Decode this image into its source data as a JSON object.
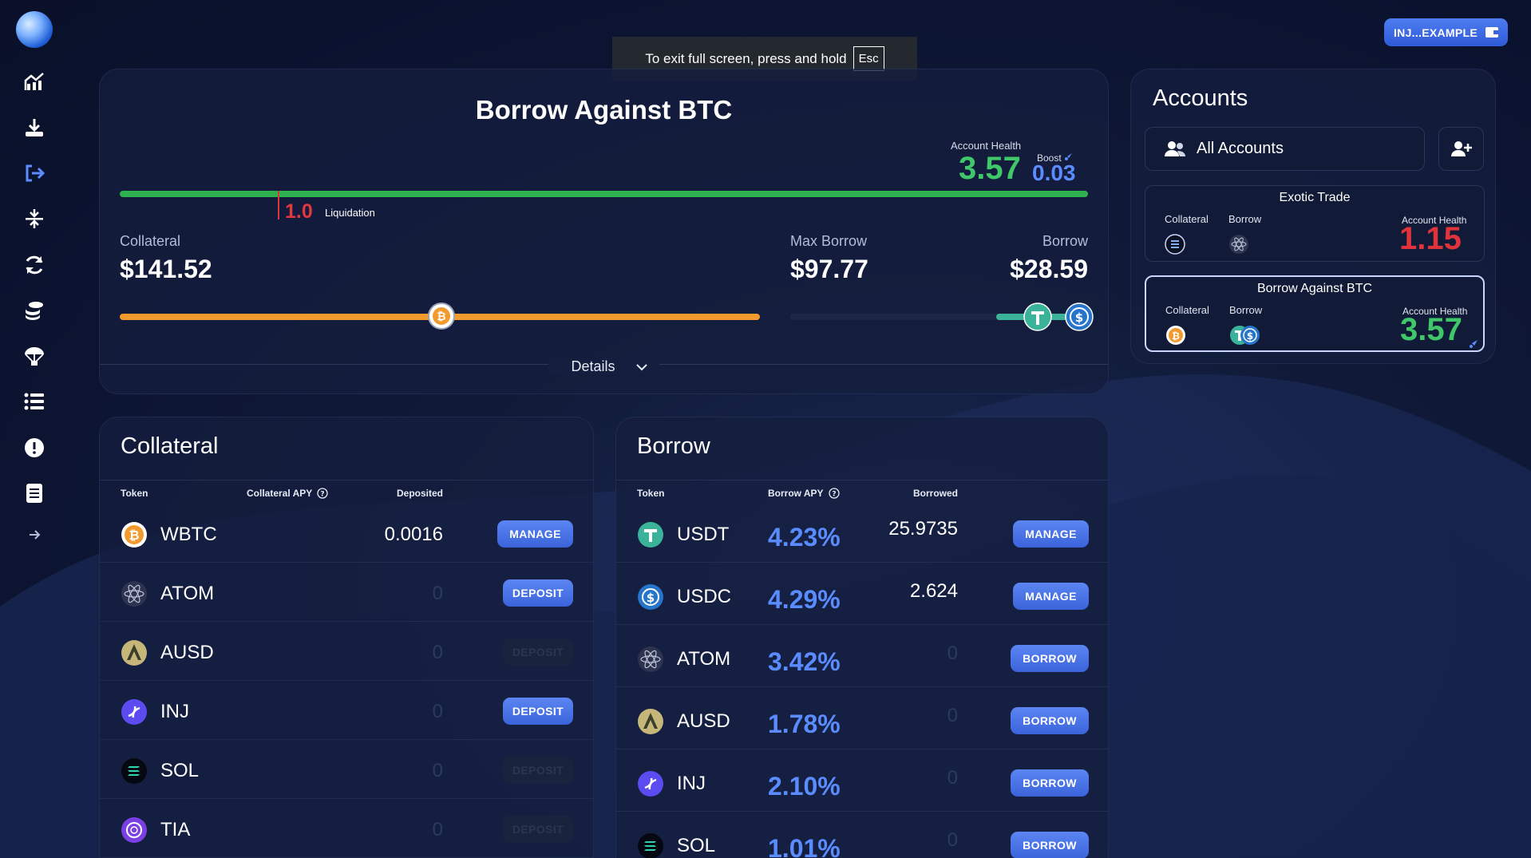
{
  "wallet": {
    "label": "INJ...EXAMPLE"
  },
  "fullscreen_toast": {
    "text": "To exit full screen, press and hold",
    "key": "Esc"
  },
  "sidebar": {
    "items": [
      "home-chart-icon",
      "download-icon",
      "logout-arrow-icon",
      "compress-icon",
      "refresh-icon",
      "coins-stack-icon",
      "parachute-icon",
      "list-icon",
      "alert-icon",
      "document-icon",
      "arrow-right-icon"
    ]
  },
  "main": {
    "title": "Borrow Against BTC",
    "account_health_label": "Account Health",
    "account_health_value": "3.57",
    "boost_label": "Boost",
    "boost_value": "0.03",
    "liquidation_value": "1.0",
    "liquidation_label": "Liquidation",
    "collateral_label": "Collateral",
    "collateral_value": "$141.52",
    "max_borrow_label": "Max Borrow",
    "max_borrow_value": "$97.77",
    "borrow_label": "Borrow",
    "borrow_value": "$28.59",
    "details_label": "Details"
  },
  "accounts": {
    "title": "Accounts",
    "all_accounts_label": "All Accounts",
    "cards": [
      {
        "name": "Exotic Trade",
        "collateral_label": "Collateral",
        "borrow_label": "Borrow",
        "health_label": "Account Health",
        "health_value": "1.15",
        "health_color": "#e0343c"
      },
      {
        "name": "Borrow Against BTC",
        "collateral_label": "Collateral",
        "borrow_label": "Borrow",
        "health_label": "Account Health",
        "health_value": "3.57",
        "health_color": "#3fc76a"
      }
    ]
  },
  "collateral": {
    "title": "Collateral",
    "headers": {
      "token": "Token",
      "apy": "Collateral APY",
      "deposited": "Deposited"
    },
    "rows": [
      {
        "token": "WBTC",
        "deposited": "0.0016",
        "action": "MANAGE"
      },
      {
        "token": "ATOM",
        "deposited": "0",
        "action": "DEPOSIT"
      },
      {
        "token": "AUSD",
        "deposited": "0",
        "action": "DEPOSIT"
      },
      {
        "token": "INJ",
        "deposited": "0",
        "action": "DEPOSIT"
      },
      {
        "token": "SOL",
        "deposited": "0",
        "action": "DEPOSIT"
      },
      {
        "token": "TIA",
        "deposited": "0",
        "action": "DEPOSIT"
      }
    ]
  },
  "borrow": {
    "title": "Borrow",
    "headers": {
      "token": "Token",
      "apy": "Borrow APY",
      "borrowed": "Borrowed"
    },
    "rows": [
      {
        "token": "USDT",
        "apy": "4.23%",
        "borrowed": "25.9735",
        "action": "MANAGE"
      },
      {
        "token": "USDC",
        "apy": "4.29%",
        "borrowed": "2.624",
        "action": "MANAGE"
      },
      {
        "token": "ATOM",
        "apy": "3.42%",
        "borrowed": "0",
        "action": "BORROW"
      },
      {
        "token": "AUSD",
        "apy": "1.78%",
        "borrowed": "0",
        "action": "BORROW"
      },
      {
        "token": "INJ",
        "apy": "2.10%",
        "borrowed": "0",
        "action": "BORROW"
      },
      {
        "token": "SOL",
        "apy": "1.01%",
        "borrowed": "0",
        "action": "BORROW"
      }
    ]
  },
  "colors": {
    "accent": "#4d7df0",
    "health_good": "#3fc76a",
    "health_bad": "#e0343c",
    "collateral_bar": "#f29a2e"
  }
}
